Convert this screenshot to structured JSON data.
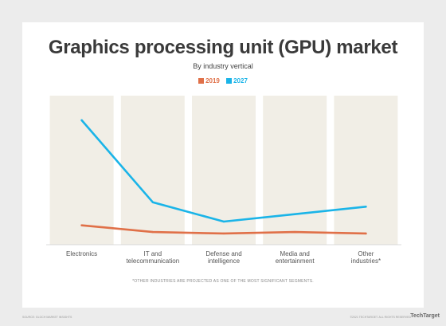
{
  "title": "Graphics processing unit (GPU) market",
  "subtitle": "By industry vertical",
  "footnote": "*OTHER INDUSTRIES ARE PROJECTED AS ONE OF THE MOST SIGNIFICANT SEGMENTS.",
  "source": "SOURCE: GLOCH MARKET INSIGHTS",
  "copyright": "©2021 TECHTARGET. ALL RIGHTS RESERVED",
  "brand": "TechTarget",
  "chart_data": {
    "type": "line",
    "title": "Graphics processing unit (GPU) market",
    "subtitle": "By industry vertical",
    "categories": [
      [
        "Electronics"
      ],
      [
        "IT and",
        "telecommunication"
      ],
      [
        "Defense and",
        "intelligence"
      ],
      [
        "Media and",
        "entertainment"
      ],
      [
        "Other",
        "industries*"
      ]
    ],
    "series": [
      {
        "name": "2019",
        "color": "#e07048",
        "values": [
          26,
          17,
          15,
          17,
          15
        ]
      },
      {
        "name": "2027",
        "color": "#1ab4e8",
        "values": [
          167,
          57,
          31,
          41,
          51
        ]
      }
    ],
    "ylim": [
      0,
      200
    ],
    "grid": false,
    "legend_position": "top-center",
    "band_color": "#f1eee6"
  }
}
